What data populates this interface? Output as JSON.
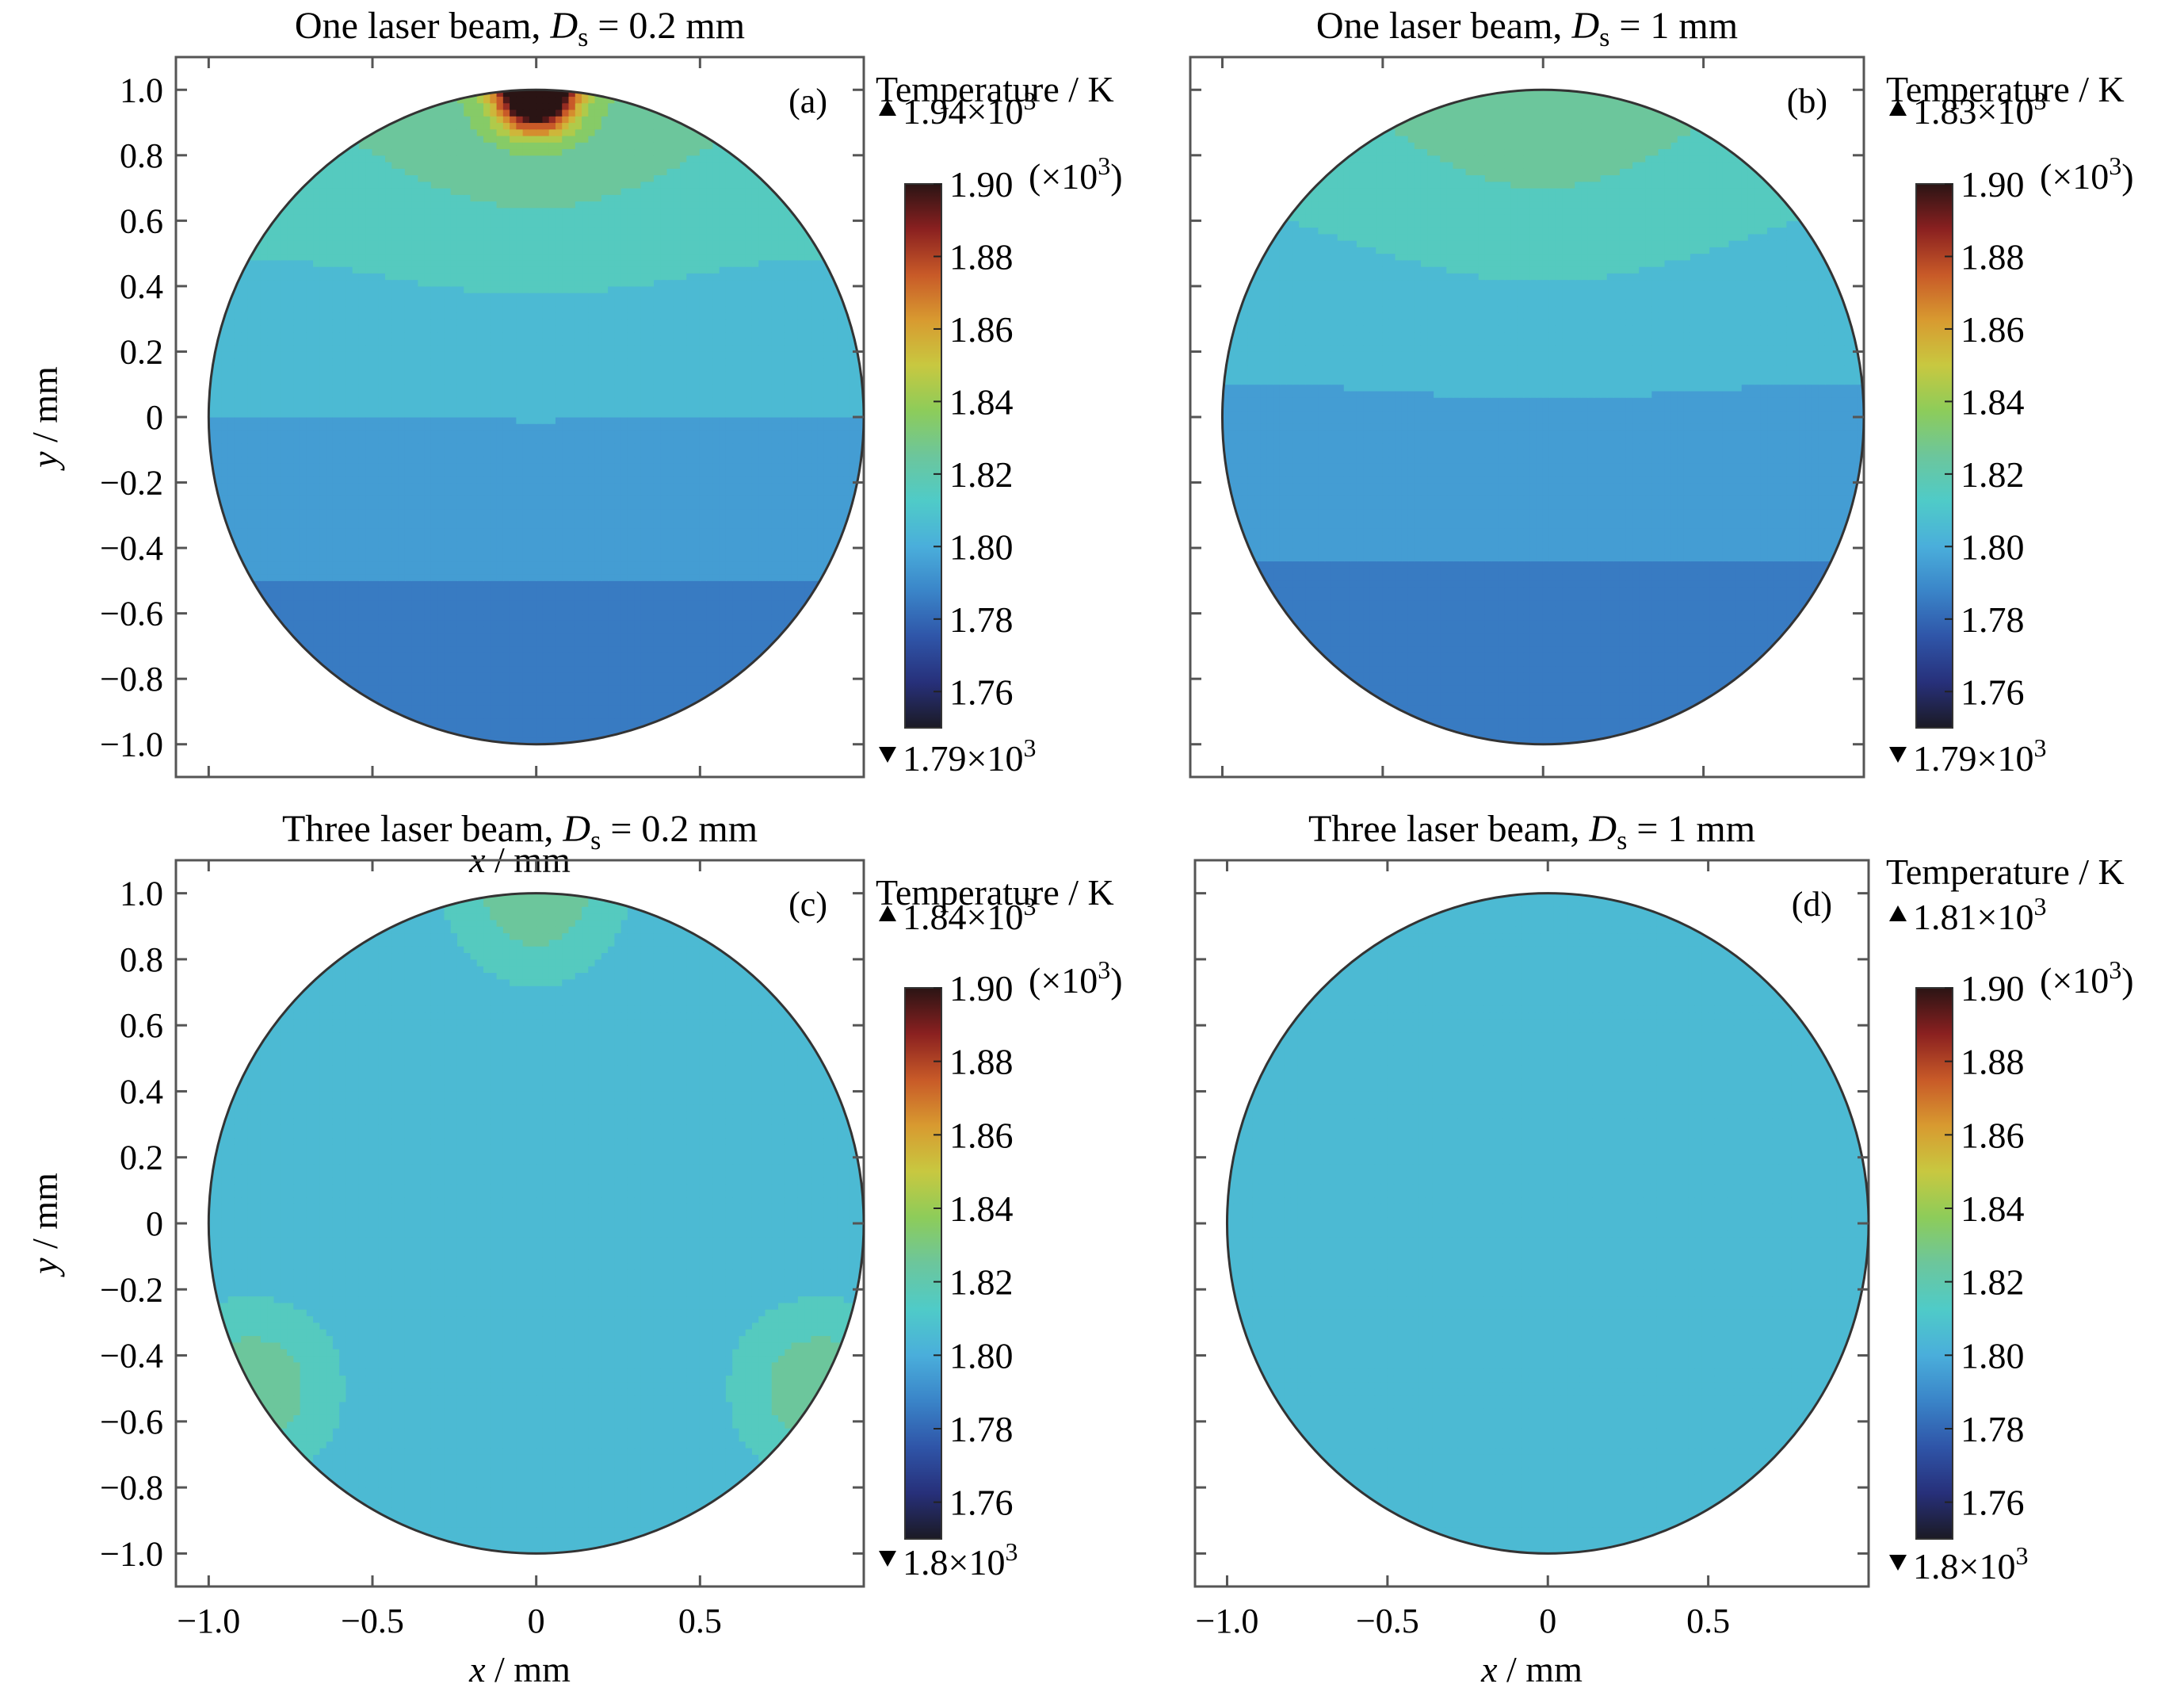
{
  "chart_data": [
    {
      "type": "heatmap",
      "panel": "(a)",
      "title_prefix": "One laser beam,",
      "title_var": "D",
      "title_sub": "s",
      "title_value": "= 0.2 mm",
      "xlabel_var": "x",
      "xlabel_unit": "/ mm",
      "ylabel_var": "y",
      "ylabel_unit": "/ mm",
      "xlim": [
        -1.1,
        1.0
      ],
      "ylim": [
        -1.1,
        1.1
      ],
      "x_ticks": [],
      "y_ticks": [
        "1.0",
        "0.8",
        "0.6",
        "0.4",
        "0.2",
        "0",
        "-0.2",
        "-0.4",
        "-0.6",
        "-0.8",
        "-1.0"
      ],
      "colorbar": {
        "label": "Temperature / K",
        "max_label": "1.94×10",
        "min_label": "1.79×10",
        "exponent": "3",
        "range": [
          1.75,
          1.9
        ],
        "multiplier": "(×10",
        "ticks": [
          "1.90",
          "1.88",
          "1.86",
          "1.84",
          "1.82",
          "1.80",
          "1.78",
          "1.76"
        ]
      },
      "field": {
        "kind": "single_beam_narrow",
        "max": 1940,
        "min": 1790
      }
    },
    {
      "type": "heatmap",
      "panel": "(b)",
      "title_prefix": "One laser beam,",
      "title_var": "D",
      "title_sub": "s",
      "title_value": "= 1 mm",
      "xlabel_var": "",
      "xlabel_unit": "",
      "ylabel_var": "",
      "ylabel_unit": "",
      "xlim": [
        -1.1,
        1.0
      ],
      "ylim": [
        -1.1,
        1.1
      ],
      "x_ticks": [],
      "y_ticks": [],
      "colorbar": {
        "label": "Temperature / K",
        "max_label": "1.83×10",
        "min_label": "1.79×10",
        "exponent": "3",
        "range": [
          1.75,
          1.9
        ],
        "multiplier": "(×10",
        "ticks": [
          "1.90",
          "1.88",
          "1.86",
          "1.84",
          "1.82",
          "1.80",
          "1.78",
          "1.76"
        ]
      },
      "field": {
        "kind": "single_beam_wide",
        "max": 1830,
        "min": 1790
      }
    },
    {
      "type": "heatmap",
      "panel": "(c)",
      "title_prefix": "Three laser beam,",
      "title_var": "D",
      "title_sub": "s",
      "title_value": "= 0.2 mm",
      "xlabel_var": "x",
      "xlabel_unit": "/ mm",
      "ylabel_var": "y",
      "ylabel_unit": "/ mm",
      "xlim": [
        -1.1,
        1.0
      ],
      "ylim": [
        -1.1,
        1.1
      ],
      "x_ticks": [
        "-1.0",
        "-0.5",
        "0",
        "0.5"
      ],
      "y_ticks": [
        "1.0",
        "0.8",
        "0.6",
        "0.4",
        "0.2",
        "0",
        "-0.2",
        "-0.4",
        "-0.6",
        "-0.8",
        "-1.0"
      ],
      "colorbar": {
        "label": "Temperature / K",
        "max_label": "1.84×10",
        "min_label": "1.8×10",
        "exponent": "3",
        "range": [
          1.75,
          1.9
        ],
        "multiplier": "(×10",
        "ticks": [
          "1.90",
          "1.88",
          "1.86",
          "1.84",
          "1.82",
          "1.80",
          "1.78",
          "1.76"
        ]
      },
      "field": {
        "kind": "three_beam_narrow",
        "max": 1840,
        "min": 1800
      }
    },
    {
      "type": "heatmap",
      "panel": "(d)",
      "title_prefix": "Three laser beam,",
      "title_var": "D",
      "title_sub": "s",
      "title_value": "= 1 mm",
      "xlabel_var": "x",
      "xlabel_unit": "/ mm",
      "ylabel_var": "",
      "ylabel_unit": "",
      "xlim": [
        -1.1,
        1.0
      ],
      "ylim": [
        -1.1,
        1.1
      ],
      "x_ticks": [
        "-1.0",
        "-0.5",
        "0",
        "0.5"
      ],
      "y_ticks": [],
      "colorbar": {
        "label": "Temperature / K",
        "max_label": "1.81×10",
        "min_label": "1.8×10",
        "exponent": "3",
        "range": [
          1.75,
          1.9
        ],
        "multiplier": "(×10",
        "ticks": [
          "1.90",
          "1.88",
          "1.86",
          "1.84",
          "1.82",
          "1.80",
          "1.78",
          "1.76"
        ]
      },
      "field": {
        "kind": "uniform",
        "max": 1810,
        "min": 1800
      }
    }
  ],
  "colors": {
    "colormap": [
      "#1b1a24",
      "#27307a",
      "#2f55a8",
      "#3a84c8",
      "#4aaedb",
      "#4fcbc8",
      "#6cc69c",
      "#8dcc5a",
      "#c8c840",
      "#d89a30",
      "#c85a28",
      "#8a2020",
      "#2a1414"
    ],
    "frame": "#555555",
    "boundary": "#333333"
  }
}
